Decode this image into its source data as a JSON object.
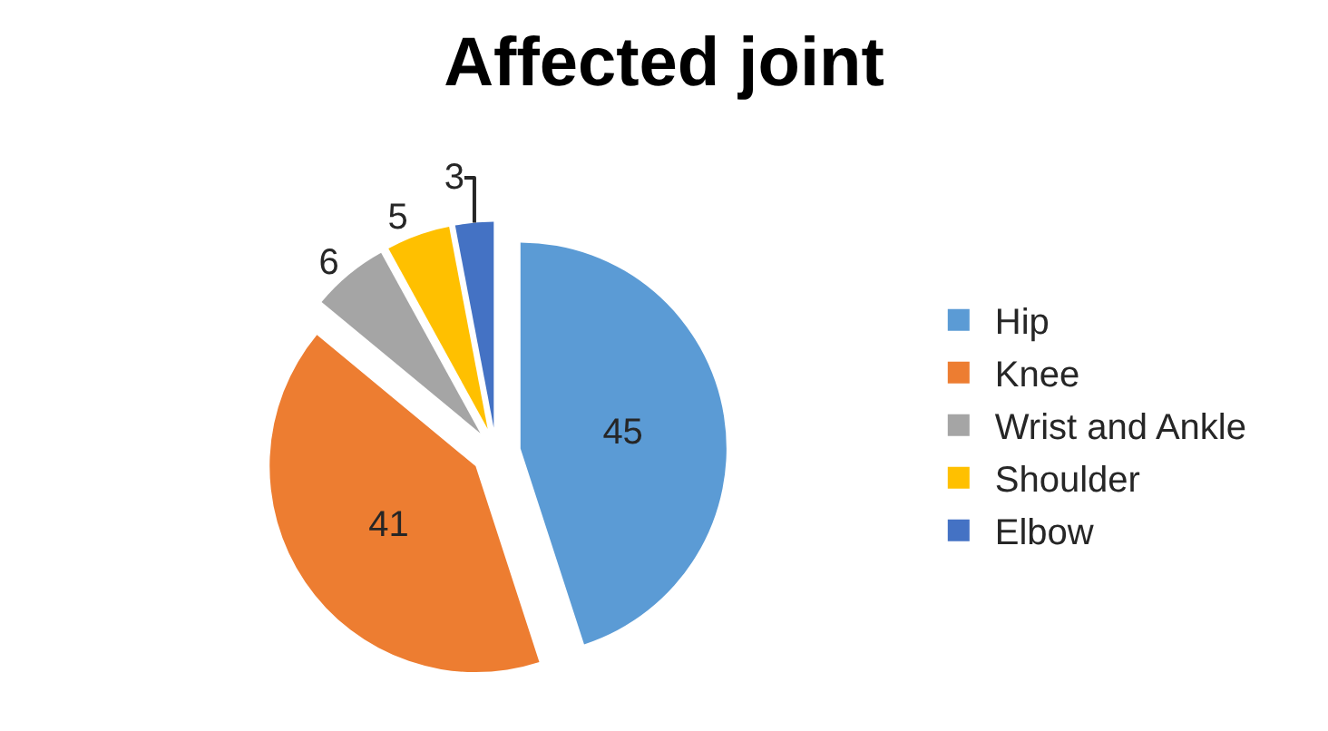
{
  "chart_data": {
    "type": "pie",
    "title": "Affected joint",
    "categories": [
      "Hip",
      "Knee",
      "Wrist and Ankle",
      "Shoulder",
      "Elbow"
    ],
    "values": [
      45,
      41,
      6,
      5,
      3
    ],
    "colors": [
      "#5b9bd5",
      "#ed7d31",
      "#a5a5a5",
      "#ffc000",
      "#4472c4"
    ],
    "data_labels": true,
    "legend": "right"
  }
}
